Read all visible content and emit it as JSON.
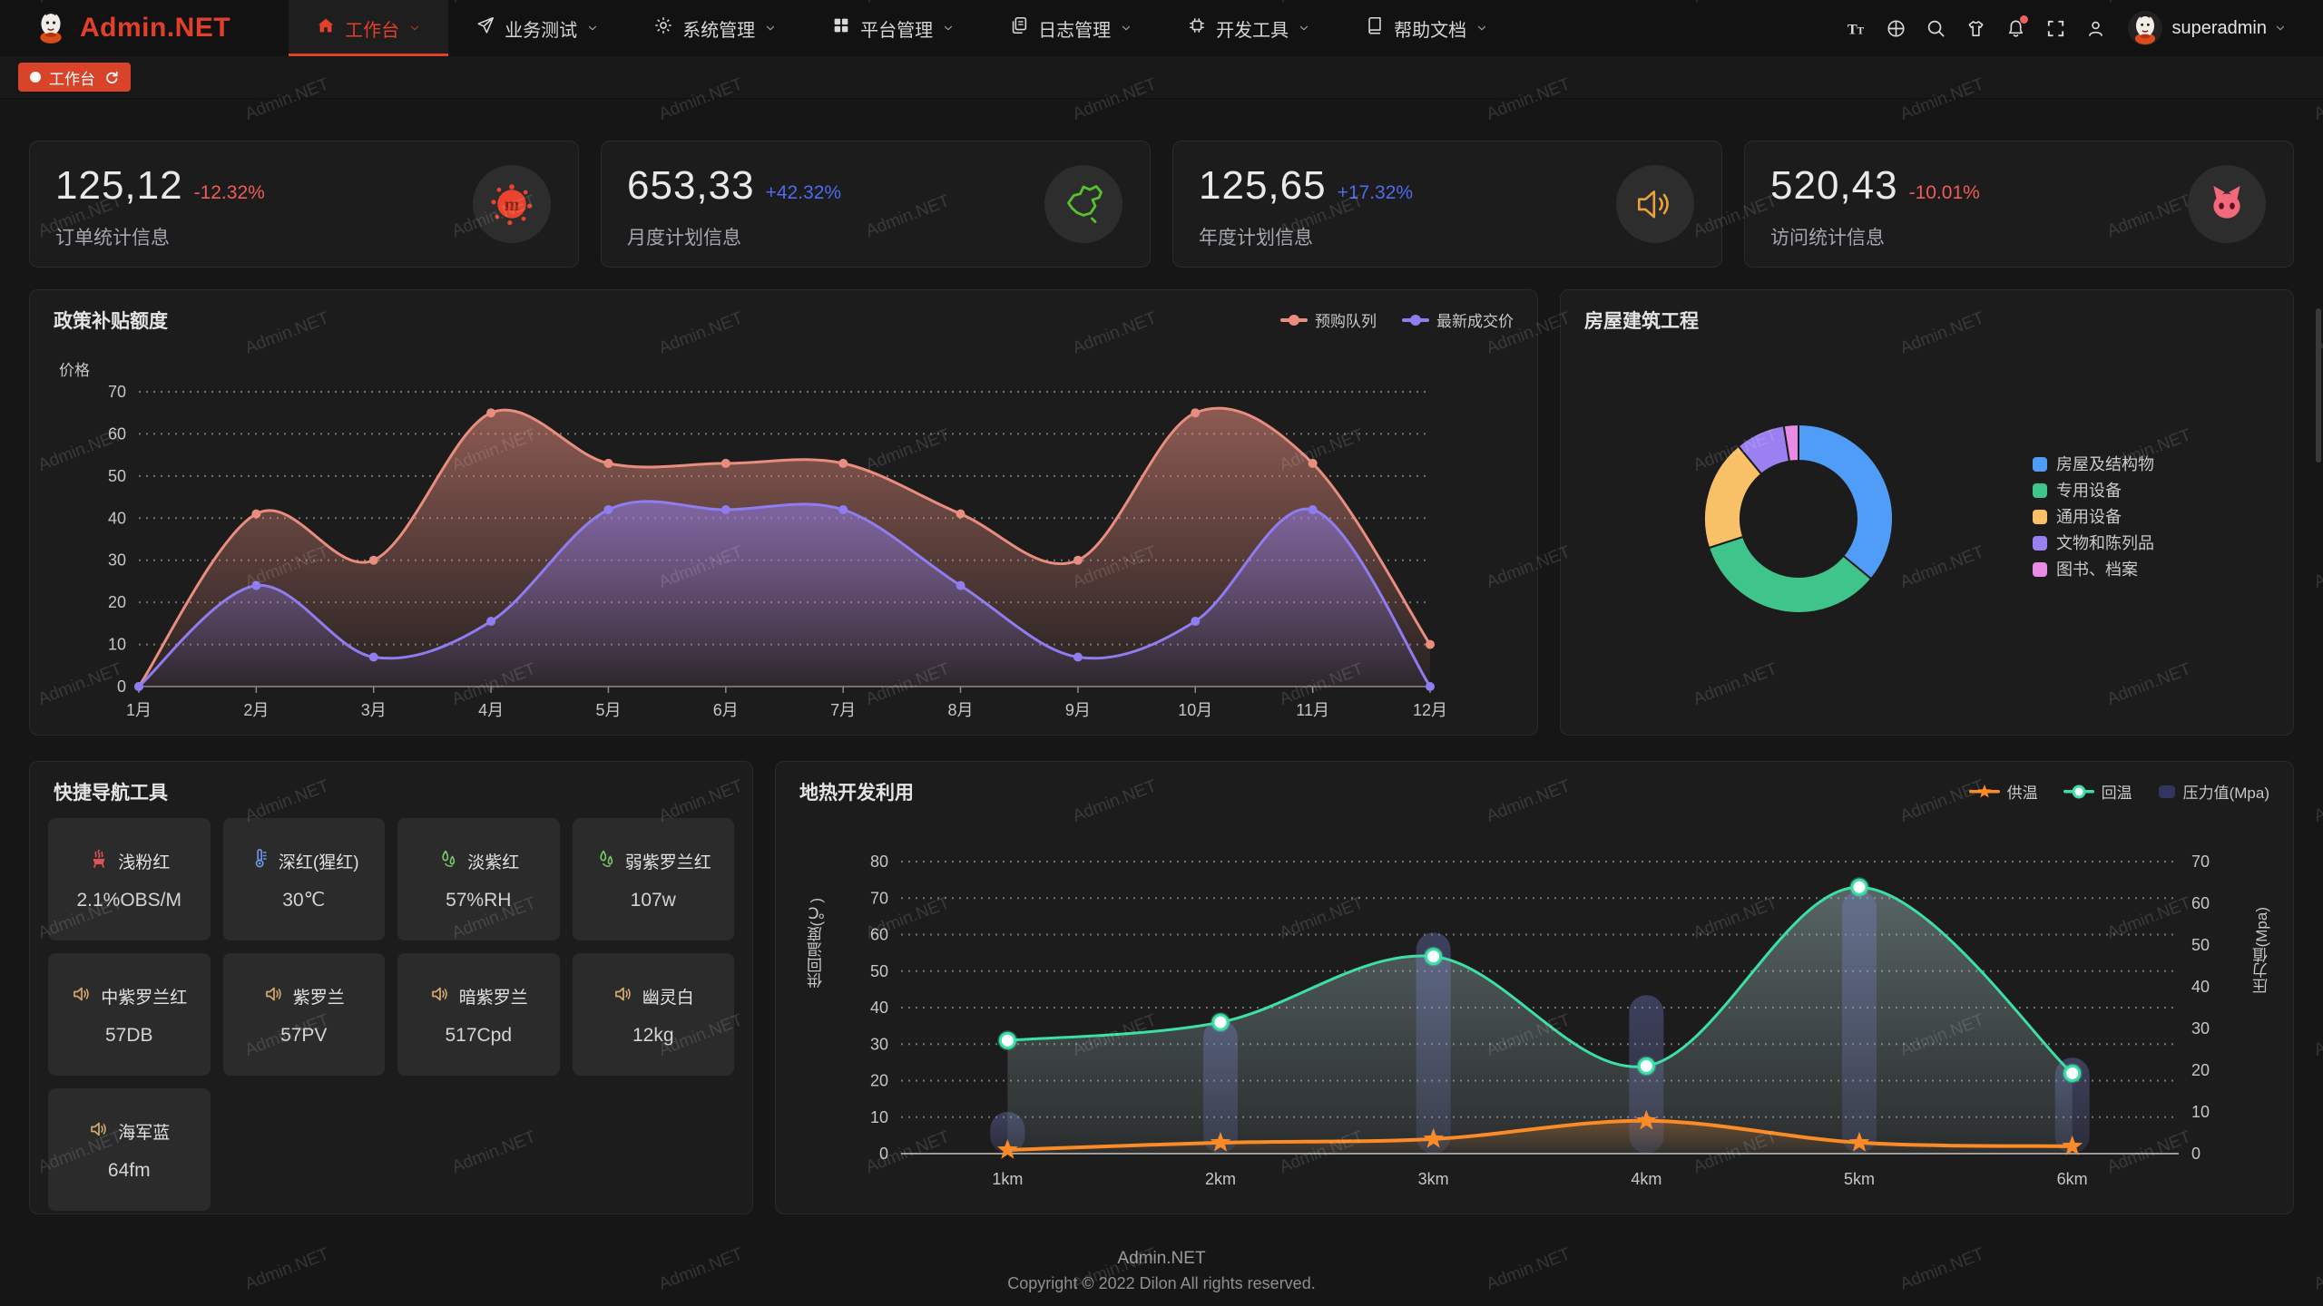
{
  "header": {
    "logo_text": "Admin.NET",
    "menu": [
      {
        "label": "工作台",
        "icon": "home-icon",
        "active": true,
        "has_chevron": true
      },
      {
        "label": "业务测试",
        "icon": "send-icon",
        "active": false,
        "has_chevron": true
      },
      {
        "label": "系统管理",
        "icon": "gear-icon",
        "active": false,
        "has_chevron": true
      },
      {
        "label": "平台管理",
        "icon": "grid-icon",
        "active": false,
        "has_chevron": true
      },
      {
        "label": "日志管理",
        "icon": "document-icon",
        "active": false,
        "has_chevron": true
      },
      {
        "label": "开发工具",
        "icon": "chip-icon",
        "active": false,
        "has_chevron": true
      },
      {
        "label": "帮助文档",
        "icon": "book-icon",
        "active": false,
        "has_chevron": true
      }
    ],
    "username": "superadmin",
    "notification_dot_color": "#f0605c"
  },
  "tabbar": {
    "tabs": [
      {
        "label": "工作台",
        "active": true
      }
    ]
  },
  "stat_cards": [
    {
      "value": "125,12",
      "delta": "-12.32%",
      "delta_color": "#f15b55",
      "label": "订单统计信息",
      "icon": "meetup-splash-icon",
      "icon_color": "#e8442e"
    },
    {
      "value": "653,33",
      "delta": "+42.32%",
      "delta_color": "#4d6bef",
      "label": "月度计划信息",
      "icon": "china-map-icon",
      "icon_color": "#56c02f"
    },
    {
      "value": "125,65",
      "delta": "+17.32%",
      "delta_color": "#4d6bef",
      "label": "年度计划信息",
      "icon": "speaker-icon",
      "icon_color": "#eba13c"
    },
    {
      "value": "520,43",
      "delta": "-10.01%",
      "delta_color": "#f15b55",
      "label": "访问统计信息",
      "icon": "cat-icon",
      "icon_color": "#f2697c"
    }
  ],
  "chart_data": [
    {
      "type": "line",
      "title": "政策补贴额度",
      "ylabel": "价格",
      "categories": [
        "1月",
        "2月",
        "3月",
        "4月",
        "5月",
        "6月",
        "7月",
        "8月",
        "9月",
        "10月",
        "11月",
        "12月"
      ],
      "ylim": [
        0,
        70
      ],
      "yticks": [
        0,
        10,
        20,
        30,
        40,
        50,
        60,
        70
      ],
      "grid": "dashed",
      "legend_position": "top-right",
      "series": [
        {
          "name": "预购队列",
          "color": "#e98d7f",
          "area": true,
          "values": [
            0,
            41,
            30,
            65,
            53,
            53,
            53,
            41,
            30,
            65,
            53,
            10
          ]
        },
        {
          "name": "最新成交价",
          "color": "#8f7df0",
          "area": true,
          "values": [
            0,
            24,
            7,
            15.5,
            42,
            42,
            42,
            24,
            7,
            15.5,
            42,
            0
          ]
        }
      ]
    },
    {
      "type": "pie",
      "title": "房屋建筑工程",
      "donut": true,
      "legend_position": "right",
      "slices": [
        {
          "name": "房屋及结构物",
          "value": 36,
          "color": "#4f9df6"
        },
        {
          "name": "专用设备",
          "value": 34,
          "color": "#3fc48b"
        },
        {
          "name": "通用设备",
          "value": 19,
          "color": "#f8c168"
        },
        {
          "name": "文物和陈列品",
          "value": 8.5,
          "color": "#9b80f2"
        },
        {
          "name": "图书、档案",
          "value": 2.5,
          "color": "#e98be4"
        }
      ]
    },
    {
      "type": "line+bar",
      "title": "地热开发利用",
      "categories": [
        "1km",
        "2km",
        "3km",
        "4km",
        "5km",
        "6km"
      ],
      "ylabel_left": "供回温度(℃)",
      "ylabel_right": "压力值(Mpa)",
      "ylim_left": [
        0,
        80
      ],
      "yticks_left": [
        0,
        10,
        20,
        30,
        40,
        50,
        60,
        70,
        80
      ],
      "ylim_right": [
        0,
        70
      ],
      "yticks_right": [
        0,
        10,
        20,
        30,
        40,
        50,
        60,
        70
      ],
      "grid": "dashed",
      "legend_position": "top-right",
      "series": [
        {
          "name": "供温",
          "type": "line",
          "axis": "left",
          "color": "#fb8b26",
          "marker": "star",
          "values": [
            1,
            3,
            4,
            9,
            3,
            2
          ]
        },
        {
          "name": "回温",
          "type": "line",
          "axis": "left",
          "color": "#3ce0a5",
          "marker": "circle",
          "area": true,
          "values": [
            31,
            36,
            54,
            24,
            73,
            22
          ]
        },
        {
          "name": "压力值(Mpa)",
          "type": "bar",
          "axis": "right",
          "color": "#7d86d8",
          "values": [
            10,
            32,
            53,
            38,
            63,
            23
          ]
        }
      ]
    }
  ],
  "quick_nav": {
    "title": "快捷导航工具",
    "items": [
      {
        "name": "浅粉红",
        "value": "2.1%OBS/M",
        "icon": "fire-icon",
        "icon_color": "#e05252"
      },
      {
        "name": "深红(猩红)",
        "value": "30℃",
        "icon": "thermometer-icon",
        "icon_color": "#6e93e8"
      },
      {
        "name": "淡紫红",
        "value": "57%RH",
        "icon": "humidity-icon",
        "icon_color": "#7bc96c"
      },
      {
        "name": "弱紫罗兰红",
        "value": "107w",
        "icon": "humidity-icon",
        "icon_color": "#7bc96c"
      },
      {
        "name": "中紫罗兰红",
        "value": "57DB",
        "icon": "speaker-icon",
        "icon_color": "#d7a96f"
      },
      {
        "name": "紫罗兰",
        "value": "57PV",
        "icon": "speaker-icon",
        "icon_color": "#d7a96f"
      },
      {
        "name": "暗紫罗兰",
        "value": "517Cpd",
        "icon": "speaker-icon",
        "icon_color": "#d7a96f"
      },
      {
        "name": "幽灵白",
        "value": "12kg",
        "icon": "speaker-icon",
        "icon_color": "#d7a96f"
      },
      {
        "name": "海军蓝",
        "value": "64fm",
        "icon": "speaker-icon",
        "icon_color": "#d7a96f"
      }
    ]
  },
  "footer": {
    "line1": "Admin.NET",
    "line2": "Copyright © 2022 Dilon All rights reserved."
  },
  "watermark": {
    "text": "Admin.NET"
  },
  "colors": {
    "accent": "#e2402a",
    "tag_bg": "#d8432a",
    "panel_bg": "#1c1c1c",
    "delta_up": "#4d6bef",
    "delta_down": "#f15b55"
  }
}
